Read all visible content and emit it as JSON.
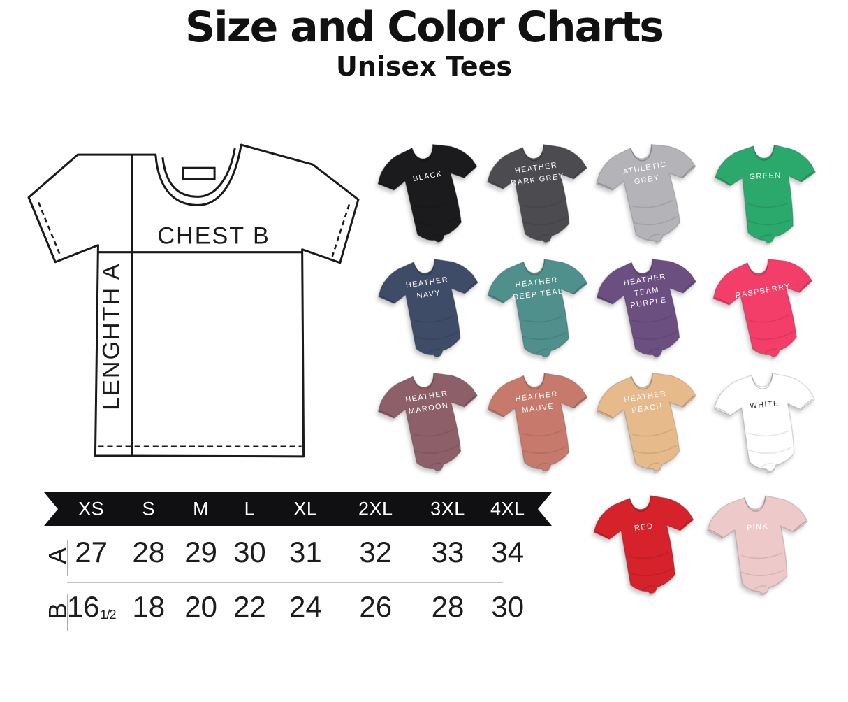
{
  "header": {
    "title": "Size and Color Charts",
    "subtitle": "Unisex Tees"
  },
  "diagram": {
    "chest_label": "CHEST B",
    "length_label": "LENGHTH A"
  },
  "size_table": {
    "banner_color": "#101012",
    "sizes": [
      "XS",
      "S",
      "M",
      "L",
      "XL",
      "2XL",
      "3XL",
      "4XL"
    ],
    "row_a": {
      "label": "A",
      "values": [
        "27",
        "28",
        "29",
        "30",
        "31",
        "32",
        "33",
        "34"
      ]
    },
    "row_b": {
      "label": "B",
      "values": [
        "16",
        "18",
        "20",
        "22",
        "24",
        "26",
        "28",
        "30"
      ],
      "first_value_fraction": "1/2"
    }
  },
  "chart_data": {
    "type": "table",
    "title": "Size and Color Charts",
    "subtitle": "Unisex Tees",
    "columns": [
      "XS",
      "S",
      "M",
      "L",
      "XL",
      "2XL",
      "3XL",
      "4XL"
    ],
    "rows": [
      {
        "label": "A",
        "measure": "LENGHTH A",
        "values": [
          27,
          28,
          29,
          30,
          31,
          32,
          33,
          34
        ]
      },
      {
        "label": "B",
        "measure": "CHEST B",
        "values": [
          16.5,
          18,
          20,
          22,
          24,
          26,
          28,
          30
        ]
      }
    ]
  },
  "shirts": [
    {
      "label": "BLACK",
      "color": "#1b1b1d",
      "text_color": "#ffffff",
      "row": 0,
      "col": 0
    },
    {
      "label": "HEATHER\nDARK GREY",
      "color": "#4c4b50",
      "text_color": "#ffffff",
      "row": 0,
      "col": 1
    },
    {
      "label": "ATHLETIC\nGREY",
      "color": "#b4b3b8",
      "text_color": "#ffffff",
      "row": 0,
      "col": 2
    },
    {
      "label": "GREEN",
      "color": "#2ba86c",
      "text_color": "#ffffff",
      "row": 0,
      "col": 3
    },
    {
      "label": "HEATHER\nNAVY",
      "color": "#3e4c68",
      "text_color": "#ffffff",
      "row": 1,
      "col": 0
    },
    {
      "label": "HEATHER\nDEEP TEAL",
      "color": "#4f8f8c",
      "text_color": "#ffffff",
      "row": 1,
      "col": 1
    },
    {
      "label": "HEATHER\nTEAM\nPURPLE",
      "color": "#6b4f80",
      "text_color": "#ffffff",
      "row": 1,
      "col": 2
    },
    {
      "label": "RASPBERRY",
      "color": "#f23e69",
      "text_color": "#ffffff",
      "row": 1,
      "col": 3
    },
    {
      "label": "HEATHER\nMAROON",
      "color": "#8d5f69",
      "text_color": "#ffffff",
      "row": 2,
      "col": 0
    },
    {
      "label": "HEATHER\nMAUVE",
      "color": "#c77a6b",
      "text_color": "#ffffff",
      "row": 2,
      "col": 1
    },
    {
      "label": "HEATHER\nPEACH",
      "color": "#e7ba8c",
      "text_color": "#ffffff",
      "row": 2,
      "col": 2
    },
    {
      "label": "WHITE",
      "color": "#ffffff",
      "text_color": "#2f2f2f",
      "row": 2,
      "col": 3
    },
    {
      "label": "RED",
      "color": "#d5222b",
      "text_color": "#ffffff",
      "row": 3,
      "col": 2
    },
    {
      "label": "PINK",
      "color": "#eec9ca",
      "text_color": "#ffffff",
      "row": 3,
      "col": 3
    }
  ]
}
